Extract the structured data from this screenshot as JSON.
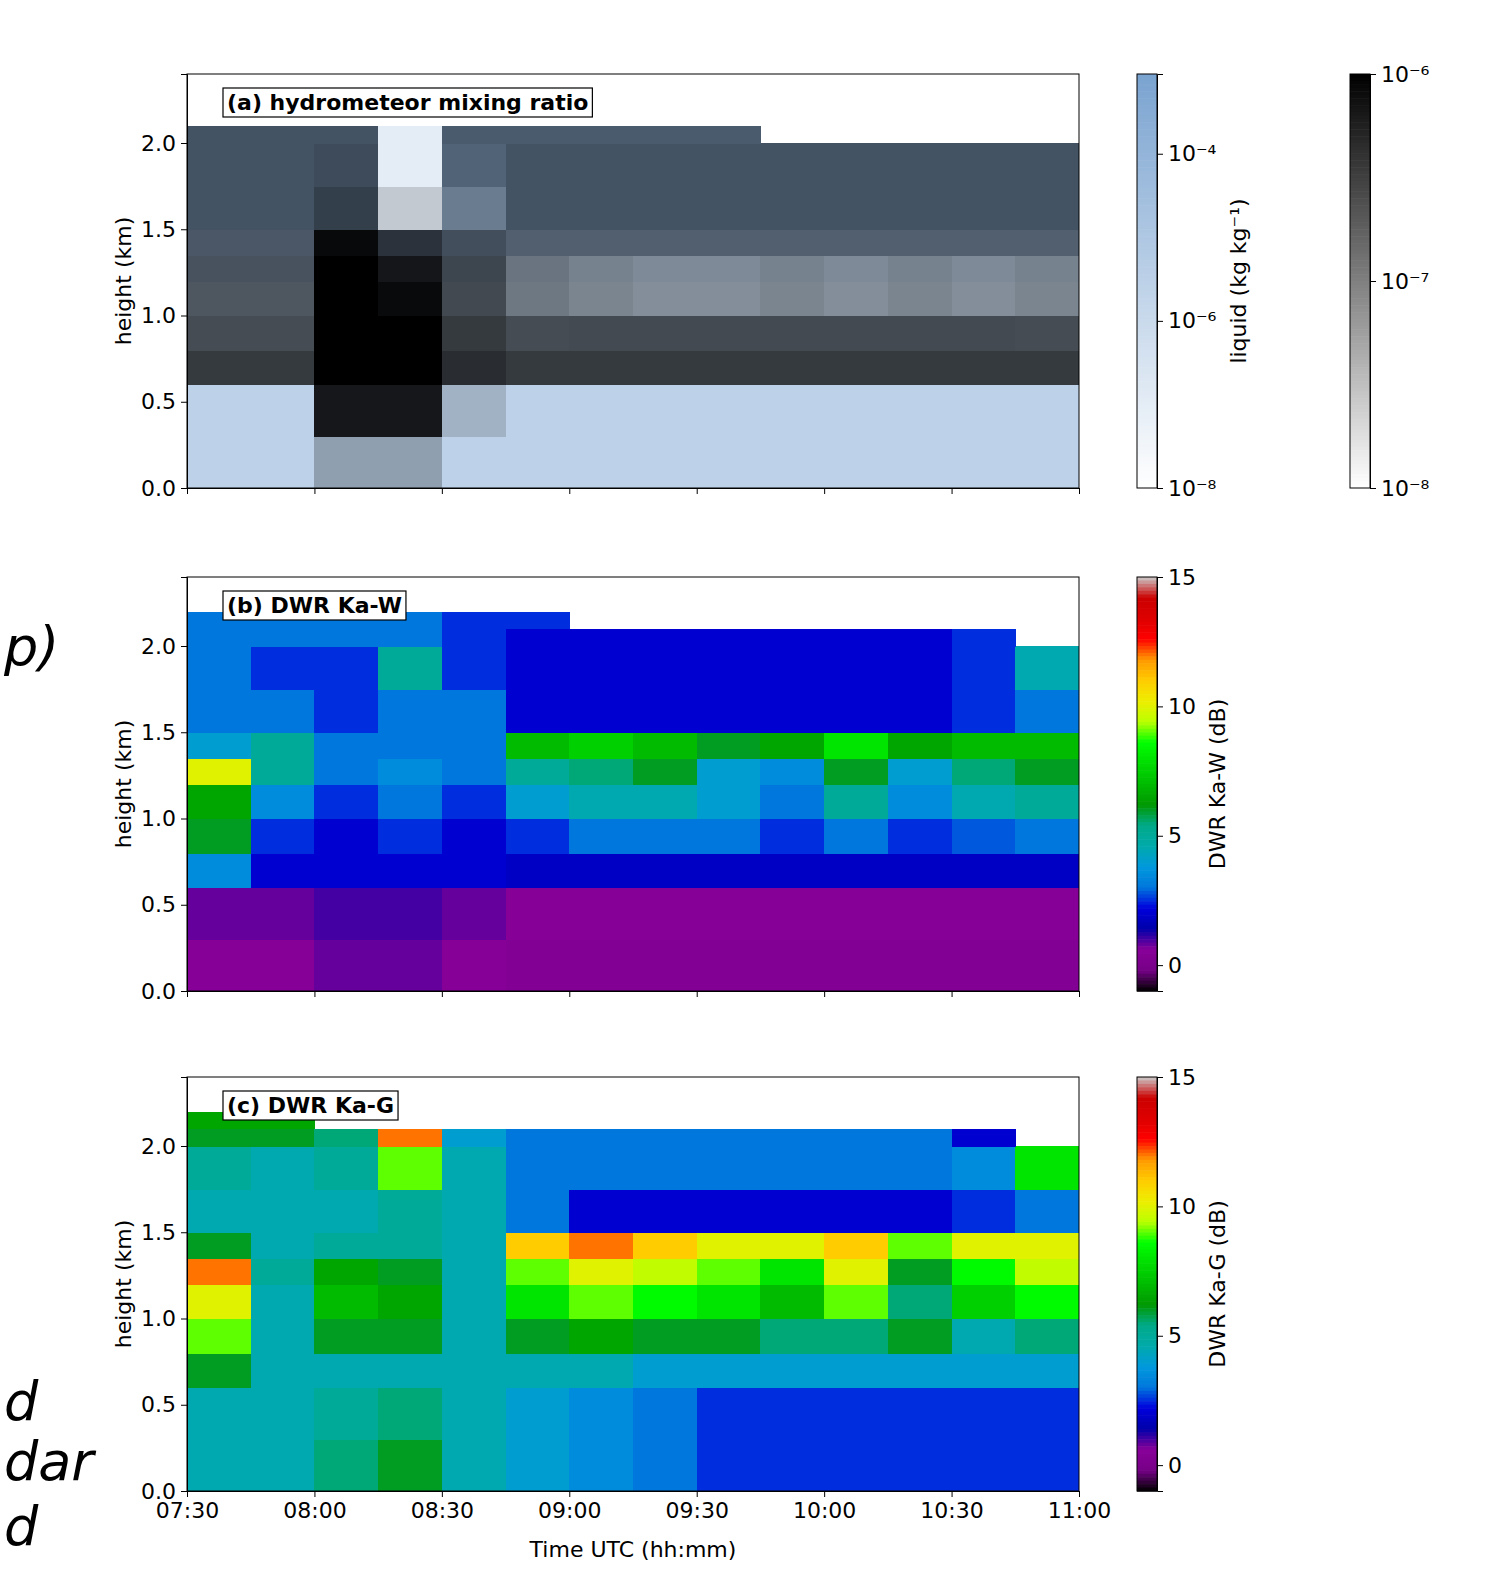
{
  "chart_data": [
    {
      "type": "heatmap",
      "title": "(a) hydrometeor mixing ratio",
      "ylabel": "height (km)",
      "xlim": [
        450,
        660
      ],
      "ylim": [
        0,
        2.4
      ],
      "xticks": [
        450,
        480,
        510,
        540,
        570,
        600,
        630,
        660
      ],
      "yticks": [
        {
          "value": 0,
          "label": "0.0"
        },
        {
          "value": 0.5,
          "label": "0.5"
        },
        {
          "value": 1,
          "label": "1.0"
        },
        {
          "value": 1.5,
          "label": "1.5"
        },
        {
          "value": 2,
          "label": "2.0"
        }
      ],
      "tick_labels": "y",
      "log": true,
      "x_edges": [
        450,
        465,
        480,
        495,
        510,
        525,
        540,
        555,
        570,
        585,
        600,
        615,
        630,
        645,
        660
      ],
      "y_edges": [
        0,
        0.3,
        0.6,
        0.8,
        1.0,
        1.2,
        1.35,
        1.5,
        1.75,
        2.0,
        2.1,
        2.2
      ],
      "layers": [
        {
          "color": "#7aa3d0",
          "colorbar": {
            "label": "liquid (kg kg⁻¹)",
            "range": [
              1e-08,
              0.0009
            ],
            "ticks": [
              {
                "value": 1e-08,
                "label": "10⁻⁸"
              },
              {
                "value": 1e-06,
                "label": "10⁻⁶"
              },
              {
                "value": 0.0001,
                "label": "10⁻⁴"
              }
            ]
          },
          "values": [
            [
              3e-06,
              3e-06,
              3e-06,
              3e-06,
              3e-06,
              3e-06,
              3e-06,
              3e-06,
              3e-06,
              3e-06,
              3e-06,
              3e-06,
              3e-06,
              3e-06
            ],
            [
              3e-06,
              3e-06,
              5e-06,
              5e-06,
              3e-06,
              3e-06,
              3e-06,
              3e-06,
              3e-06,
              3e-06,
              3e-06,
              3e-06,
              3e-06,
              3e-06
            ],
            [
              1e-06,
              1e-06,
              1e-06,
              1e-06,
              1e-06,
              1e-06,
              1e-06,
              1e-06,
              1e-06,
              1e-06,
              1e-06,
              1e-06,
              1e-06,
              1e-06
            ],
            [
              1e-06,
              1e-06,
              1e-06,
              1e-06,
              1e-06,
              1e-06,
              2e-06,
              2e-06,
              2e-06,
              2e-06,
              2e-06,
              2e-06,
              2e-06,
              1e-06
            ],
            [
              3e-06,
              3e-06,
              3e-06,
              3e-06,
              3e-06,
              1e-06,
              1e-06,
              1e-06,
              1e-06,
              1e-06,
              1e-06,
              1e-06,
              1e-06,
              1e-06
            ],
            [
              1e-05,
              1e-05,
              1e-05,
              1e-05,
              1e-05,
              2e-06,
              2e-06,
              2e-06,
              2e-06,
              2e-06,
              2e-06,
              2e-06,
              2e-06,
              2e-06
            ],
            [
              3e-05,
              3e-05,
              3e-05,
              3e-05,
              3e-05,
              3e-05,
              3e-05,
              3e-05,
              3e-05,
              3e-05,
              3e-05,
              3e-05,
              3e-05,
              3e-05
            ],
            [
              0.0001,
              0.0001,
              0.0001,
              1e-07,
              3e-05,
              0.0001,
              0.0001,
              0.0001,
              0.0001,
              0.0001,
              0.0001,
              0.0001,
              0.0001,
              0.0001
            ],
            [
              0.0001,
              0.0001,
              0.0001,
              1e-07,
              0.0001,
              0.0001,
              0.0001,
              0.0001,
              0.0001,
              0.0001,
              0.0001,
              0.0001,
              0.0001,
              0.0001
            ],
            [
              0.0001,
              0.0001,
              0.0001,
              1e-07,
              0.0001,
              0.0001,
              0.0001,
              0.0001,
              0.0001,
              null,
              null,
              null,
              null,
              null
            ],
            [
              null,
              null,
              null,
              null,
              null,
              null,
              null,
              null,
              null,
              null,
              null,
              null,
              null,
              null
            ]
          ]
        },
        {
          "color": "#000000",
          "colorbar": {
            "range": [
              1e-08,
              1e-06
            ],
            "ticks": [
              {
                "value": 1e-08,
                "label": "10⁻⁸"
              },
              {
                "value": 1e-07,
                "label": "10⁻⁷"
              },
              {
                "value": 1e-06,
                "label": "10⁻⁶"
              }
            ]
          },
          "values": [
            [
              1e-08,
              1e-08,
              3e-08,
              3e-08,
              1e-08,
              1e-08,
              1e-08,
              1e-08,
              1e-08,
              1e-08,
              1e-08,
              1e-08,
              1e-08,
              1e-08
            ],
            [
              1e-08,
              1e-08,
              6e-07,
              6e-07,
              2e-08,
              1e-08,
              1e-08,
              1e-08,
              1e-08,
              1e-08,
              1e-08,
              1e-08,
              1e-08,
              1e-08
            ],
            [
              3e-07,
              3e-07,
              1e-06,
              1e-06,
              4e-07,
              3e-07,
              3e-07,
              3e-07,
              3e-07,
              3e-07,
              3e-07,
              3e-07,
              3e-07,
              3e-07
            ],
            [
              2e-07,
              2e-07,
              1e-06,
              1e-06,
              3e-07,
              2e-07,
              2e-07,
              2e-07,
              2e-07,
              2e-07,
              2e-07,
              2e-07,
              2e-07,
              2e-07
            ],
            [
              1.5e-07,
              1.5e-07,
              1e-06,
              8e-07,
              2e-07,
              8e-08,
              6e-08,
              5e-08,
              5e-08,
              6e-08,
              5e-08,
              6e-08,
              5e-08,
              6e-08
            ],
            [
              1.5e-07,
              1.5e-07,
              1e-06,
              6e-07,
              2e-07,
              8e-08,
              6e-08,
              5e-08,
              5e-08,
              6e-08,
              5e-08,
              6e-08,
              5e-08,
              6e-08
            ],
            [
              1.2e-07,
              1.2e-07,
              8e-07,
              3e-07,
              1.5e-07,
              1e-07,
              1e-07,
              1e-07,
              1e-07,
              1e-07,
              1e-07,
              1e-07,
              1e-07,
              1e-07
            ],
            [
              1.2e-07,
              1.2e-07,
              2e-07,
              2e-08,
              5e-08,
              1.2e-07,
              1.2e-07,
              1.2e-07,
              1.2e-07,
              1.2e-07,
              1.2e-07,
              1.2e-07,
              1.2e-07,
              1.2e-07
            ],
            [
              1.2e-07,
              1.2e-07,
              1.5e-07,
              1e-08,
              8e-08,
              1.2e-07,
              1.2e-07,
              1.2e-07,
              1.2e-07,
              1.2e-07,
              1.2e-07,
              1.2e-07,
              1.2e-07,
              1.2e-07
            ],
            [
              1.2e-07,
              1.2e-07,
              1.2e-07,
              1e-08,
              1e-07,
              1e-07,
              1e-07,
              1e-07,
              1e-07,
              null,
              null,
              null,
              null,
              null
            ],
            [
              null,
              null,
              null,
              null,
              null,
              null,
              null,
              null,
              null,
              null,
              null,
              null,
              null,
              null
            ]
          ]
        }
      ]
    },
    {
      "type": "heatmap",
      "title": "(b) DWR Ka-W",
      "ylabel": "height (km)",
      "xlim": [
        450,
        660
      ],
      "ylim": [
        0,
        2.4
      ],
      "xticks": [
        450,
        480,
        510,
        540,
        570,
        600,
        630,
        660
      ],
      "yticks": [
        {
          "value": 0,
          "label": "0.0"
        },
        {
          "value": 0.5,
          "label": "0.5"
        },
        {
          "value": 1,
          "label": "1.0"
        },
        {
          "value": 1.5,
          "label": "1.5"
        },
        {
          "value": 2,
          "label": "2.0"
        }
      ],
      "tick_labels": "y",
      "x_edges": [
        450,
        465,
        480,
        495,
        510,
        525,
        540,
        555,
        570,
        585,
        600,
        615,
        630,
        645,
        660
      ],
      "y_edges": [
        0,
        0.3,
        0.6,
        0.8,
        1.0,
        1.2,
        1.35,
        1.5,
        1.75,
        2.0,
        2.1,
        2.2
      ],
      "colorbar": {
        "label": "DWR Ka-W (dB)",
        "range": [
          -1,
          15
        ],
        "ticks": [
          0,
          5,
          10,
          15
        ]
      },
      "annotations": [
        "p)"
      ],
      "values": [
        [
          0.5,
          0.5,
          0.8,
          0.8,
          0.5,
          0.3,
          0.3,
          0.3,
          0.3,
          0.3,
          0.3,
          0.3,
          0.3,
          0.3
        ],
        [
          0.8,
          0.8,
          1,
          1,
          0.8,
          0.5,
          0.5,
          0.5,
          0.5,
          0.5,
          0.5,
          0.5,
          0.5,
          0.5
        ],
        [
          3.5,
          2,
          2,
          2,
          2,
          1.8,
          1.8,
          1.8,
          1.8,
          1.8,
          1.8,
          1.8,
          1.8,
          1.8
        ],
        [
          6,
          2.5,
          2,
          2.5,
          2,
          2.5,
          3,
          3,
          3,
          2.5,
          3,
          2.5,
          2.8,
          3
        ],
        [
          6.5,
          3.5,
          2.5,
          3,
          2.5,
          4,
          4.5,
          4.5,
          4,
          3,
          5,
          3.5,
          4.5,
          5
        ],
        [
          10,
          5,
          3,
          3.5,
          3,
          5,
          5.5,
          6,
          4,
          3.5,
          6,
          4,
          5.5,
          6
        ],
        [
          4,
          5,
          3,
          3,
          3,
          7,
          7.5,
          7,
          6,
          6.5,
          8,
          6.5,
          7,
          7
        ],
        [
          3,
          3,
          2.5,
          3,
          3,
          2,
          2,
          2,
          2,
          2,
          2,
          2,
          2.5,
          3
        ],
        [
          3,
          2.5,
          2.5,
          5,
          2.5,
          2,
          2,
          2,
          2,
          2,
          2,
          2,
          2.5,
          4.5
        ],
        [
          3,
          3,
          3,
          3,
          2.5,
          2,
          2,
          2,
          2,
          2,
          2,
          2,
          2.5,
          null
        ],
        [
          3,
          3,
          3,
          3,
          2.5,
          2.5,
          null,
          null,
          null,
          null,
          null,
          null,
          null,
          null
        ]
      ]
    },
    {
      "type": "heatmap",
      "title": "(c) DWR Ka-G",
      "ylabel": "height (km)",
      "xlabel": "Time UTC (hh:mm)",
      "xlim": [
        450,
        660
      ],
      "ylim": [
        0,
        2.4
      ],
      "xticks": [
        {
          "value": 450,
          "label": "07:30"
        },
        {
          "value": 480,
          "label": "08:00"
        },
        {
          "value": 510,
          "label": "08:30"
        },
        {
          "value": 540,
          "label": "09:00"
        },
        {
          "value": 570,
          "label": "09:30"
        },
        {
          "value": 600,
          "label": "10:00"
        },
        {
          "value": 630,
          "label": "10:30"
        },
        {
          "value": 660,
          "label": "11:00"
        }
      ],
      "yticks": [
        {
          "value": 0,
          "label": "0.0"
        },
        {
          "value": 0.5,
          "label": "0.5"
        },
        {
          "value": 1,
          "label": "1.0"
        },
        {
          "value": 1.5,
          "label": "1.5"
        },
        {
          "value": 2,
          "label": "2.0"
        }
      ],
      "x_edges": [
        450,
        465,
        480,
        495,
        510,
        525,
        540,
        555,
        570,
        585,
        600,
        615,
        630,
        645,
        660
      ],
      "y_edges": [
        0,
        0.3,
        0.6,
        0.8,
        1.0,
        1.2,
        1.35,
        1.5,
        1.75,
        2.0,
        2.1,
        2.2
      ],
      "colorbar": {
        "label": "DWR Ka-G (dB)",
        "range": [
          -1,
          15
        ],
        "ticks": [
          0,
          5,
          10,
          15
        ]
      },
      "annotations": [
        "d",
        "dar",
        "d"
      ],
      "values": [
        [
          4.5,
          4.5,
          5.5,
          6,
          4.5,
          4,
          3.5,
          3,
          2.5,
          2.5,
          2.5,
          2.5,
          2.5,
          2.5
        ],
        [
          4.5,
          4.5,
          5,
          5.5,
          4.5,
          4,
          3.5,
          3,
          2.5,
          2.5,
          2.5,
          2.5,
          2.5,
          2.5
        ],
        [
          6,
          4.5,
          4.5,
          4.5,
          4.5,
          4.5,
          4.5,
          4,
          4,
          4,
          4,
          4,
          4,
          4
        ],
        [
          9,
          4.5,
          6,
          6,
          4.5,
          6,
          6.5,
          6,
          6,
          5.5,
          5.5,
          6,
          4.5,
          5.5
        ],
        [
          10,
          4.5,
          7,
          6.5,
          4.5,
          8,
          9,
          8.5,
          8,
          7,
          9,
          5.5,
          7.5,
          8.5
        ],
        [
          12,
          5,
          6.5,
          6,
          4.5,
          9,
          10,
          9.5,
          9,
          8,
          10,
          6,
          8.5,
          9.5
        ],
        [
          6,
          4.5,
          5,
          5,
          4.5,
          11,
          12,
          11,
          10,
          10,
          11,
          9,
          10,
          10
        ],
        [
          4.5,
          4.5,
          4.5,
          5,
          4.5,
          3,
          2,
          2,
          2,
          2,
          2,
          2,
          2.5,
          3
        ],
        [
          5,
          4.5,
          5,
          9,
          4.5,
          3,
          3,
          3,
          3,
          3,
          3,
          3,
          3.5,
          8
        ],
        [
          6,
          6,
          5.5,
          12,
          4,
          3,
          3,
          3,
          3,
          3,
          3,
          3,
          2,
          null
        ],
        [
          6.5,
          6.5,
          null,
          null,
          null,
          null,
          null,
          null,
          null,
          null,
          null,
          null,
          null,
          null
        ]
      ]
    }
  ]
}
